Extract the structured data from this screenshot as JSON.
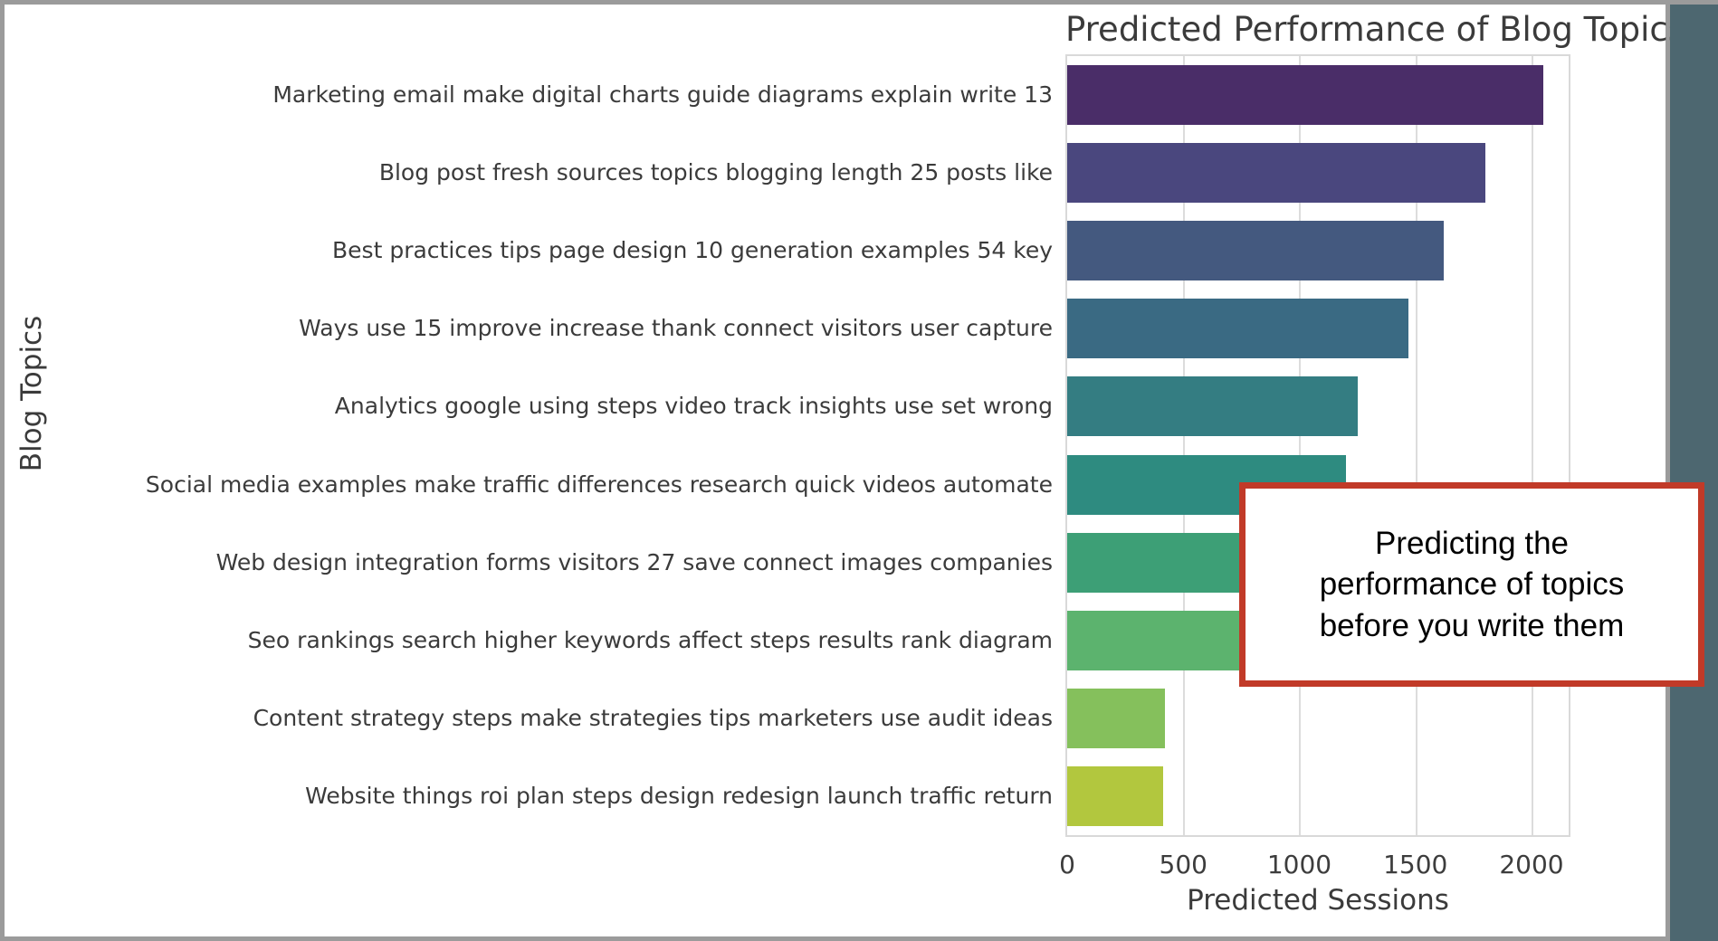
{
  "window": {
    "frame_color": "#9b9b9b",
    "slide_bg": "#ffffff",
    "backdrop_color": "#4d6770"
  },
  "chart_data": {
    "type": "bar",
    "orientation": "horizontal",
    "title": "Predicted Performance of Blog Topics",
    "xlabel": "Predicted Sessions",
    "ylabel": "Blog Topics",
    "xlim": [
      0,
      2160
    ],
    "xticks": [
      0,
      500,
      1000,
      1500,
      2000
    ],
    "grid": true,
    "legend": false,
    "categories": [
      "Marketing email make digital charts guide diagrams explain write 13",
      "Blog post fresh sources topics blogging length 25 posts like",
      "Best practices tips page design 10 generation examples 54 key",
      "Ways use 15 improve increase thank connect visitors user capture",
      "Analytics google using steps video track insights use set wrong",
      "Social media examples make traffic differences research quick videos automate",
      "Web design integration forms visitors 27 save connect images companies",
      "Seo rankings search higher keywords affect steps results rank diagram",
      "Content strategy steps make strategies tips marketers use audit ideas",
      "Website things roi plan steps design redesign launch traffic return"
    ],
    "values": [
      2050,
      1800,
      1620,
      1470,
      1250,
      1200,
      1150,
      1100,
      420,
      415
    ],
    "bar_colors": [
      "#4a2d68",
      "#4a477e",
      "#44597f",
      "#3a6a83",
      "#347d82",
      "#2e8b80",
      "#3d9f76",
      "#5cb36e",
      "#85c05c",
      "#b2c73e"
    ],
    "gridline_color": "#dcdcdc",
    "spine_color": "#d9d9d9"
  },
  "annotation": {
    "lines": [
      "Predicting the",
      "performance of topics",
      "before you write them"
    ],
    "border_color": "#c13a28",
    "bg_color": "#ffffff",
    "text_color": "#000000"
  }
}
